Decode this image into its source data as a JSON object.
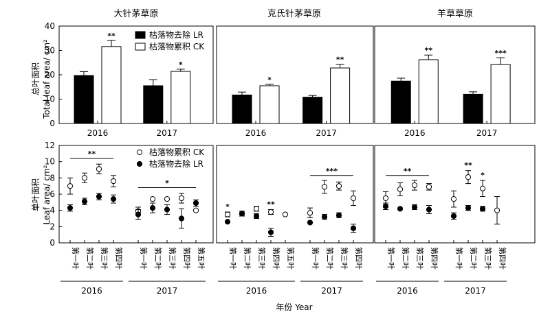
{
  "x_title": "年份 Year",
  "legend_top": {
    "lr": "枯落物去除 LR",
    "ck": "枯落物累积 CK"
  },
  "legend_bottom": {
    "ck": "枯落物累积 CK",
    "lr": "枯落物去除 LR"
  },
  "colors": {
    "lr": "#000000",
    "ck": "#ffffff"
  },
  "chart_data": [
    {
      "type": "bar",
      "panel": "top-left",
      "title": "大针茅草原",
      "ylabel": [
        "总叶面积",
        "Total leaf area/ cm²"
      ],
      "ylim": [
        0,
        40
      ],
      "yticks": [
        0,
        10,
        20,
        30,
        40
      ],
      "categories": [
        "2016",
        "2017"
      ],
      "series": [
        {
          "name": "枯落物去除 LR",
          "values": [
            19.7,
            15.5
          ],
          "errors": [
            1.6,
            2.5
          ]
        },
        {
          "name": "枯落物累积 CK",
          "values": [
            31.6,
            21.4
          ],
          "errors": [
            2.5,
            0.9
          ]
        }
      ],
      "significance": [
        "**",
        "*"
      ],
      "legend": "top-right"
    },
    {
      "type": "bar",
      "panel": "top-middle",
      "title": "克氏针茅草原",
      "ylim": [
        0,
        40
      ],
      "categories": [
        "2016",
        "2017"
      ],
      "series": [
        {
          "name": "枯落物去除 LR",
          "values": [
            11.7,
            10.8
          ],
          "errors": [
            1.2,
            0.7
          ]
        },
        {
          "name": "枯落物累积 CK",
          "values": [
            15.5,
            22.8
          ],
          "errors": [
            0.6,
            1.5
          ]
        }
      ],
      "significance": [
        "*",
        "**"
      ]
    },
    {
      "type": "bar",
      "panel": "top-right",
      "title": "羊草草原",
      "ylim": [
        0,
        40
      ],
      "categories": [
        "2016",
        "2017"
      ],
      "series": [
        {
          "name": "枯落物去除 LR",
          "values": [
            17.4,
            12.0
          ],
          "errors": [
            1.2,
            1.0
          ]
        },
        {
          "name": "枯落物累积 CK",
          "values": [
            26.2,
            24.2
          ],
          "errors": [
            1.9,
            2.8
          ]
        }
      ],
      "significance": [
        "**",
        "***"
      ]
    },
    {
      "type": "scatter",
      "panel": "bottom-left",
      "ylabel": [
        "单叶面积",
        "Leaf area/ cm²"
      ],
      "ylim": [
        0,
        12
      ],
      "yticks": [
        0,
        2,
        4,
        6,
        8,
        10,
        12
      ],
      "groups": [
        {
          "year": "2016",
          "categories": [
            "第一叶",
            "第二叶",
            "第三叶",
            "第四叶"
          ]
        },
        {
          "year": "2017",
          "categories": [
            "第一叶",
            "第二叶",
            "第三叶",
            "第四叶",
            "第五叶"
          ]
        }
      ],
      "series": [
        {
          "name": "枯落物累积 CK",
          "values": [
            7.0,
            8.0,
            9.1,
            7.6,
            3.9,
            5.4,
            5.4,
            5.5,
            4.0
          ],
          "errors": [
            1.0,
            0.6,
            0.6,
            0.7,
            0.5,
            0.0,
            0.0,
            0.6,
            0.0
          ]
        },
        {
          "name": "枯落物去除 LR",
          "values": [
            4.3,
            5.1,
            5.7,
            5.4,
            3.5,
            4.3,
            4.1,
            3.0,
            4.9
          ],
          "errors": [
            0.4,
            0.4,
            0.4,
            0.5,
            0.6,
            0.6,
            0.6,
            1.2,
            0.4
          ]
        }
      ],
      "significance_brackets": [
        {
          "group": 0,
          "label": "**",
          "y": 10.4
        },
        {
          "group": 1,
          "label": "*",
          "y": 6.8
        }
      ],
      "legend": "top-right"
    },
    {
      "type": "scatter",
      "panel": "bottom-middle",
      "ylim": [
        0,
        12
      ],
      "groups": [
        {
          "year": "2016",
          "categories": [
            "第一叶",
            "第二叶",
            "第三叶",
            "第四叶",
            "第五叶"
          ]
        },
        {
          "year": "2017",
          "categories": [
            "第一叶",
            "第二叶",
            "第三叶",
            "第四叶"
          ]
        }
      ],
      "series": [
        {
          "name": "枯落物累积 CK",
          "values": [
            3.5,
            3.6,
            4.2,
            3.8,
            3.5,
            3.7,
            6.9,
            7.0,
            5.5
          ],
          "errors": [
            0.3,
            0.3,
            0.3,
            0.3,
            0.0,
            0.6,
            0.8,
            0.5,
            0.9
          ]
        },
        {
          "name": "枯落物去除 LR",
          "values": [
            2.6,
            3.6,
            3.3,
            1.3,
            null,
            2.5,
            3.2,
            3.4,
            1.8
          ],
          "errors": [
            0.0,
            0.3,
            0.3,
            0.5,
            null,
            0.0,
            0.3,
            0.3,
            0.5
          ]
        }
      ],
      "point_labels": [
        {
          "index": 0,
          "label": "*"
        },
        {
          "index": 3,
          "label": "**"
        }
      ],
      "significance_brackets": [
        {
          "group": 1,
          "label": "***",
          "y": 8.3
        }
      ]
    },
    {
      "type": "scatter",
      "panel": "bottom-right",
      "ylim": [
        0,
        12
      ],
      "groups": [
        {
          "year": "2016",
          "categories": [
            "第一叶",
            "第二叶",
            "第三叶",
            "第四叶"
          ]
        },
        {
          "year": "2017",
          "categories": [
            "第一叶",
            "第二叶",
            "第三叶",
            "第四叶"
          ]
        }
      ],
      "series": [
        {
          "name": "枯落物累积 CK",
          "values": [
            5.5,
            6.6,
            7.1,
            6.9,
            5.4,
            8.1,
            6.7,
            4.0
          ],
          "errors": [
            0.8,
            0.8,
            0.6,
            0.4,
            1.0,
            0.8,
            1.0,
            1.7
          ]
        },
        {
          "name": "枯落物去除 LR",
          "values": [
            4.5,
            4.2,
            4.4,
            4.1,
            3.3,
            4.3,
            4.2,
            null
          ],
          "errors": [
            0.4,
            0.0,
            0.3,
            0.5,
            0.4,
            0.3,
            0.3,
            null
          ]
        }
      ],
      "point_labels": [
        {
          "index": 5,
          "label": "**"
        },
        {
          "index": 6,
          "label": "*"
        }
      ],
      "significance_brackets": [
        {
          "group": 0,
          "label": "**",
          "y": 8.3
        }
      ]
    }
  ]
}
